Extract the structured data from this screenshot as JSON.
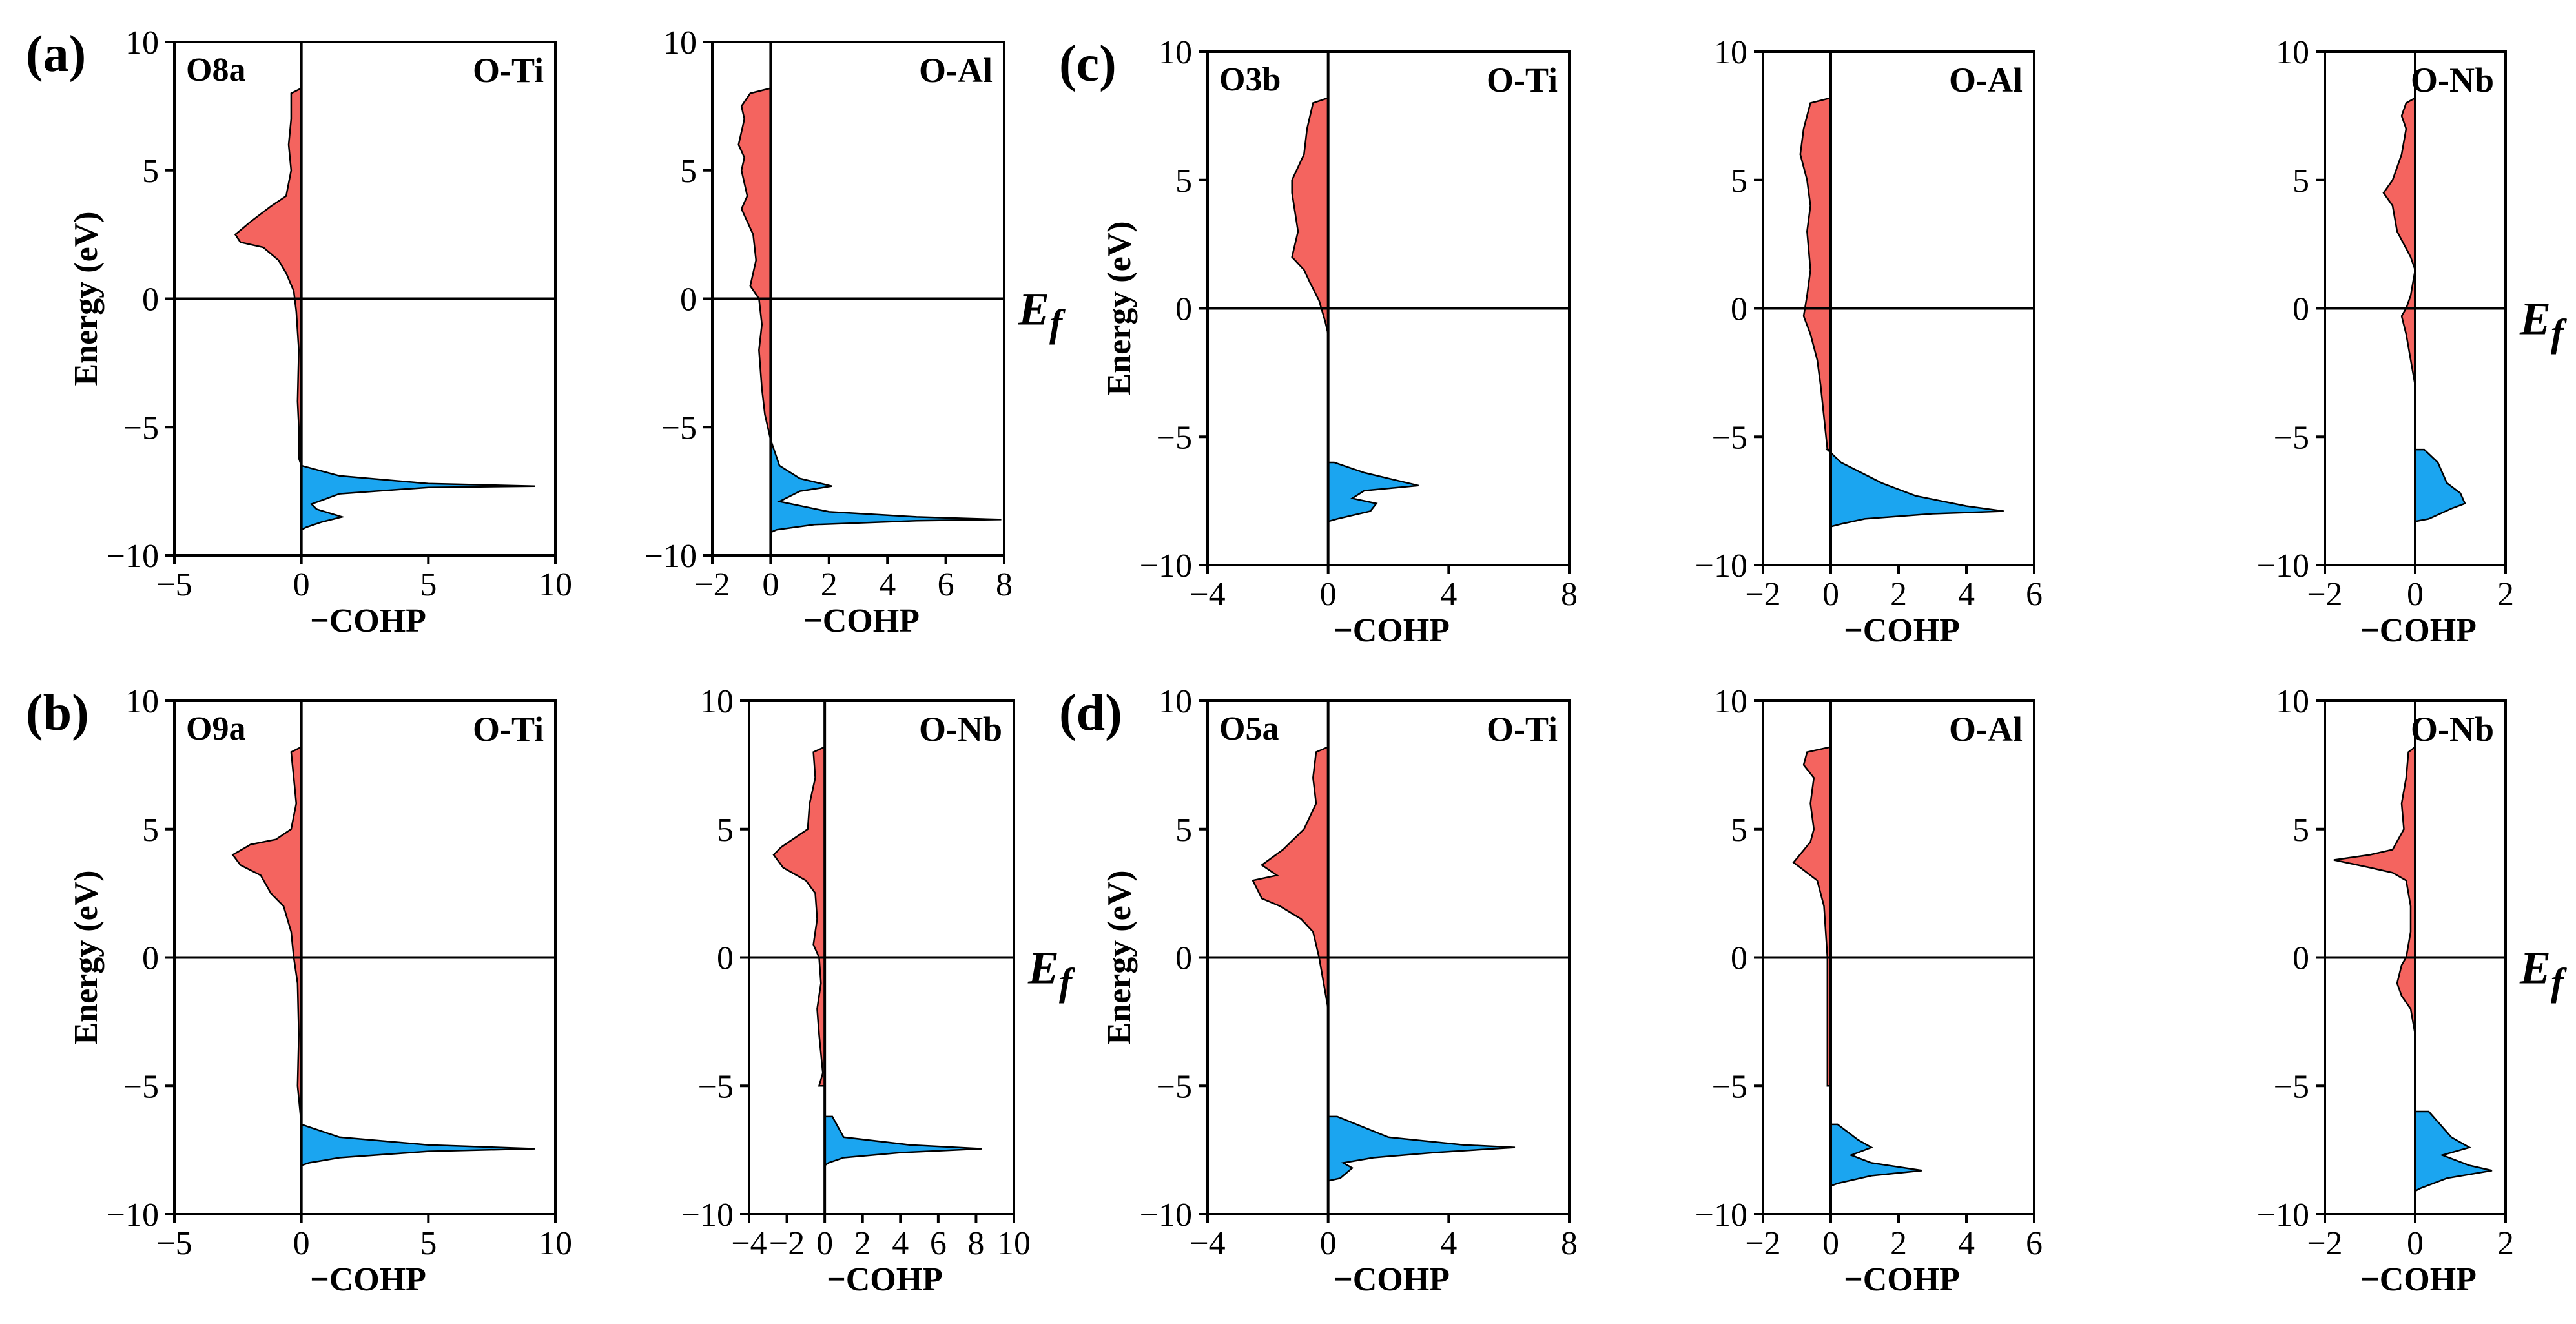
{
  "colors": {
    "antibonding": "#f4645f",
    "bonding": "#1ba5f0",
    "axis": "#000000"
  },
  "chart_data": [
    {
      "panel": "(a)",
      "site": "O8a",
      "bond": "O-Ti",
      "type": "area",
      "xlabel": "−COHP",
      "ylabel": "Energy (eV)",
      "xlim": [
        -5,
        10
      ],
      "ylim": [
        -10,
        10
      ],
      "xticks": [
        -5,
        0,
        5,
        10
      ],
      "xtick_labels": [
        "−5",
        "0",
        "5",
        "10"
      ],
      "yticks": [
        -10,
        -5,
        0,
        5,
        10
      ],
      "ytick_labels": [
        "−10",
        "−5",
        "0",
        "5",
        "10"
      ],
      "fermi_label": "",
      "curve": [
        [
          0,
          8.2
        ],
        [
          -0.4,
          8
        ],
        [
          -0.4,
          7
        ],
        [
          -0.5,
          6
        ],
        [
          -0.4,
          5
        ],
        [
          -0.6,
          4
        ],
        [
          -1.2,
          3.6
        ],
        [
          -2,
          3
        ],
        [
          -2.6,
          2.5
        ],
        [
          -2.4,
          2.2
        ],
        [
          -1.5,
          2
        ],
        [
          -0.9,
          1.5
        ],
        [
          -0.6,
          1
        ],
        [
          -0.3,
          0.3
        ],
        [
          -0.2,
          -0.5
        ],
        [
          -0.1,
          -2
        ],
        [
          -0.15,
          -4
        ],
        [
          -0.1,
          -5
        ],
        [
          -0.1,
          -6.2
        ],
        [
          0,
          -6.5
        ],
        [
          1.5,
          -6.9
        ],
        [
          5,
          -7.2
        ],
        [
          9.2,
          -7.3
        ],
        [
          5,
          -7.35
        ],
        [
          1.5,
          -7.6
        ],
        [
          0.4,
          -8
        ],
        [
          0.6,
          -8.2
        ],
        [
          1.6,
          -8.5
        ],
        [
          0.8,
          -8.7
        ],
        [
          0.2,
          -8.9
        ],
        [
          0,
          -9
        ]
      ]
    },
    {
      "panel": "",
      "site": "",
      "bond": "O-Al",
      "type": "area",
      "xlabel": "−COHP",
      "ylabel": "",
      "xlim": [
        -2,
        8
      ],
      "ylim": [
        -10,
        10
      ],
      "xticks": [
        -2,
        0,
        2,
        4,
        6,
        8
      ],
      "xtick_labels": [
        "−2",
        "0",
        "2",
        "4",
        "6",
        "8"
      ],
      "yticks": [
        -10,
        -5,
        0,
        5,
        10
      ],
      "ytick_labels": [
        "−10",
        "−5",
        "0",
        "5",
        "10"
      ],
      "fermi_label": "Ef",
      "curve": [
        [
          0,
          8.2
        ],
        [
          -0.7,
          8
        ],
        [
          -1,
          7.5
        ],
        [
          -0.9,
          7
        ],
        [
          -1.1,
          6
        ],
        [
          -0.9,
          5.5
        ],
        [
          -1,
          5
        ],
        [
          -0.8,
          4
        ],
        [
          -1,
          3.5
        ],
        [
          -0.6,
          2.5
        ],
        [
          -0.5,
          1.5
        ],
        [
          -0.7,
          0.5
        ],
        [
          -0.4,
          0
        ],
        [
          -0.3,
          -1
        ],
        [
          -0.4,
          -2
        ],
        [
          -0.3,
          -3.5
        ],
        [
          -0.2,
          -4.5
        ],
        [
          0,
          -5.5
        ],
        [
          0.3,
          -6.5
        ],
        [
          1,
          -7
        ],
        [
          2.1,
          -7.3
        ],
        [
          1,
          -7.5
        ],
        [
          0.3,
          -7.9
        ],
        [
          2,
          -8.3
        ],
        [
          5,
          -8.5
        ],
        [
          7.9,
          -8.6
        ],
        [
          5,
          -8.65
        ],
        [
          1.5,
          -8.8
        ],
        [
          0.2,
          -9
        ],
        [
          0,
          -9.1
        ]
      ]
    },
    {
      "panel": "(b)",
      "site": "O9a",
      "bond": "O-Ti",
      "type": "area",
      "xlabel": "−COHP",
      "ylabel": "Energy (eV)",
      "xlim": [
        -5,
        10
      ],
      "ylim": [
        -10,
        10
      ],
      "xticks": [
        -5,
        0,
        5,
        10
      ],
      "xtick_labels": [
        "−5",
        "0",
        "5",
        "10"
      ],
      "yticks": [
        -10,
        -5,
        0,
        5,
        10
      ],
      "ytick_labels": [
        "−10",
        "−5",
        "0",
        "5",
        "10"
      ],
      "fermi_label": "",
      "curve": [
        [
          0,
          8.2
        ],
        [
          -0.4,
          8
        ],
        [
          -0.3,
          7
        ],
        [
          -0.2,
          6
        ],
        [
          -0.4,
          5
        ],
        [
          -1,
          4.6
        ],
        [
          -2,
          4.4
        ],
        [
          -2.7,
          4
        ],
        [
          -2.4,
          3.6
        ],
        [
          -1.6,
          3.2
        ],
        [
          -1.2,
          2.5
        ],
        [
          -0.7,
          2
        ],
        [
          -0.4,
          1
        ],
        [
          -0.3,
          0
        ],
        [
          -0.15,
          -1
        ],
        [
          -0.1,
          -3
        ],
        [
          -0.15,
          -5
        ],
        [
          0,
          -6.5
        ],
        [
          1.5,
          -7
        ],
        [
          5,
          -7.3
        ],
        [
          9.2,
          -7.45
        ],
        [
          5,
          -7.55
        ],
        [
          1.5,
          -7.8
        ],
        [
          0.3,
          -8
        ],
        [
          0,
          -8.1
        ]
      ]
    },
    {
      "panel": "",
      "site": "",
      "bond": "O-Nb",
      "type": "area",
      "xlabel": "−COHP",
      "ylabel": "",
      "xlim": [
        -4,
        10
      ],
      "ylim": [
        -10,
        10
      ],
      "xticks": [
        -4,
        -2,
        0,
        2,
        4,
        6,
        8,
        10
      ],
      "xtick_labels": [
        "−4",
        "−2",
        "0",
        "2",
        "4",
        "6",
        "8",
        "10"
      ],
      "yticks": [
        -10,
        -5,
        0,
        5,
        10
      ],
      "ytick_labels": [
        "−10",
        "−5",
        "0",
        "5",
        "10"
      ],
      "fermi_label": "Ef",
      "curve": [
        [
          0,
          8.2
        ],
        [
          -0.6,
          8
        ],
        [
          -0.5,
          7
        ],
        [
          -0.8,
          6
        ],
        [
          -0.9,
          5
        ],
        [
          -2.3,
          4.3
        ],
        [
          -2.7,
          4
        ],
        [
          -2.2,
          3.5
        ],
        [
          -1,
          3
        ],
        [
          -0.5,
          2.5
        ],
        [
          -0.4,
          1.5
        ],
        [
          -0.6,
          0.5
        ],
        [
          -0.3,
          0
        ],
        [
          -0.2,
          -1
        ],
        [
          -0.4,
          -2
        ],
        [
          -0.3,
          -3
        ],
        [
          -0.1,
          -4.5
        ],
        [
          -0.3,
          -5
        ],
        [
          0.4,
          -6.2
        ],
        [
          1,
          -7
        ],
        [
          4.5,
          -7.3
        ],
        [
          8.3,
          -7.45
        ],
        [
          4,
          -7.6
        ],
        [
          1,
          -7.8
        ],
        [
          0.2,
          -8
        ],
        [
          0,
          -8.1
        ]
      ]
    },
    {
      "panel": "(c)",
      "site": "O3b",
      "bond": "O-Ti",
      "type": "area",
      "xlabel": "−COHP",
      "ylabel": "Energy (eV)",
      "xlim": [
        -4,
        8
      ],
      "ylim": [
        -10,
        10
      ],
      "xticks": [
        -4,
        0,
        4,
        8
      ],
      "xtick_labels": [
        "−4",
        "0",
        "4",
        "8"
      ],
      "yticks": [
        -10,
        -5,
        0,
        5,
        10
      ],
      "ytick_labels": [
        "−10",
        "−5",
        "0",
        "5",
        "10"
      ],
      "fermi_label": "",
      "curve": [
        [
          0,
          8.2
        ],
        [
          -0.5,
          8
        ],
        [
          -0.7,
          7
        ],
        [
          -0.8,
          6
        ],
        [
          -1.2,
          5
        ],
        [
          -1.2,
          4.5
        ],
        [
          -1,
          3
        ],
        [
          -1.2,
          2
        ],
        [
          -0.8,
          1.5
        ],
        [
          -0.6,
          1
        ],
        [
          -0.3,
          0.3
        ],
        [
          -0.1,
          -0.5
        ],
        [
          0,
          -1
        ],
        [
          0.1,
          -4
        ],
        [
          0.1,
          -4.5
        ],
        [
          0,
          -5
        ],
        [
          0.2,
          -6
        ],
        [
          1.2,
          -6.4
        ],
        [
          3,
          -6.9
        ],
        [
          1.2,
          -7.1
        ],
        [
          0.8,
          -7.4
        ],
        [
          1.6,
          -7.6
        ],
        [
          1.4,
          -7.9
        ],
        [
          0.3,
          -8.2
        ],
        [
          0,
          -8.3
        ]
      ]
    },
    {
      "panel": "",
      "site": "",
      "bond": "O-Al",
      "type": "area",
      "xlabel": "−COHP",
      "ylabel": "",
      "xlim": [
        -2,
        6
      ],
      "ylim": [
        -10,
        10
      ],
      "xticks": [
        -2,
        0,
        2,
        4,
        6
      ],
      "xtick_labels": [
        "−2",
        "0",
        "2",
        "4",
        "6"
      ],
      "yticks": [
        -10,
        -5,
        0,
        5,
        10
      ],
      "ytick_labels": [
        "−10",
        "−5",
        "0",
        "5",
        "10"
      ],
      "fermi_label": "",
      "curve": [
        [
          0,
          8.2
        ],
        [
          -0.6,
          8
        ],
        [
          -0.8,
          7
        ],
        [
          -0.9,
          6
        ],
        [
          -0.7,
          5
        ],
        [
          -0.6,
          4
        ],
        [
          -0.7,
          3
        ],
        [
          -0.6,
          1.5
        ],
        [
          -0.7,
          0.5
        ],
        [
          -0.8,
          -0.3
        ],
        [
          -0.6,
          -1
        ],
        [
          -0.4,
          -2
        ],
        [
          -0.3,
          -3
        ],
        [
          -0.1,
          -5.5
        ],
        [
          0.3,
          -6
        ],
        [
          1.5,
          -6.8
        ],
        [
          2.5,
          -7.3
        ],
        [
          4,
          -7.7
        ],
        [
          5.1,
          -7.9
        ],
        [
          3,
          -8
        ],
        [
          1,
          -8.2
        ],
        [
          0.3,
          -8.4
        ],
        [
          0,
          -8.5
        ]
      ]
    },
    {
      "panel": "",
      "site": "",
      "bond": "O-Nb",
      "type": "area",
      "xlabel": "−COHP",
      "ylabel": "",
      "xlim": [
        -2,
        2
      ],
      "ylim": [
        -10,
        10
      ],
      "xticks": [
        -2,
        0,
        2
      ],
      "xtick_labels": [
        "−2",
        "0",
        "2"
      ],
      "yticks": [
        -10,
        -5,
        0,
        5,
        10
      ],
      "ytick_labels": [
        "−10",
        "−5",
        "0",
        "5",
        "10"
      ],
      "fermi_label": "Ef",
      "curve": [
        [
          0,
          8.2
        ],
        [
          -0.2,
          8
        ],
        [
          -0.3,
          7.5
        ],
        [
          -0.2,
          7
        ],
        [
          -0.3,
          6
        ],
        [
          -0.4,
          5.5
        ],
        [
          -0.5,
          5
        ],
        [
          -0.7,
          4.5
        ],
        [
          -0.5,
          4
        ],
        [
          -0.4,
          3
        ],
        [
          -0.1,
          2
        ],
        [
          0,
          1.5
        ],
        [
          -0.1,
          0.5
        ],
        [
          -0.2,
          0
        ],
        [
          -0.3,
          -0.3
        ],
        [
          -0.2,
          -1
        ],
        [
          -0.1,
          -2
        ],
        [
          0,
          -3
        ],
        [
          0.1,
          -4
        ],
        [
          0.2,
          -5.5
        ],
        [
          0.5,
          -6
        ],
        [
          0.7,
          -6.8
        ],
        [
          1,
          -7.2
        ],
        [
          1.1,
          -7.6
        ],
        [
          0.8,
          -7.8
        ],
        [
          0.3,
          -8.2
        ],
        [
          0,
          -8.3
        ]
      ]
    },
    {
      "panel": "(d)",
      "site": "O5a",
      "bond": "O-Ti",
      "type": "area",
      "xlabel": "−COHP",
      "ylabel": "Energy (eV)",
      "xlim": [
        -4,
        8
      ],
      "ylim": [
        -10,
        10
      ],
      "xticks": [
        -4,
        0,
        4,
        8
      ],
      "xtick_labels": [
        "−4",
        "0",
        "4",
        "8"
      ],
      "yticks": [
        -10,
        -5,
        0,
        5,
        10
      ],
      "ytick_labels": [
        "−10",
        "−5",
        "0",
        "5",
        "10"
      ],
      "fermi_label": "",
      "curve": [
        [
          0,
          8.2
        ],
        [
          -0.4,
          8
        ],
        [
          -0.5,
          7
        ],
        [
          -0.4,
          6
        ],
        [
          -0.8,
          5
        ],
        [
          -1.5,
          4.2
        ],
        [
          -2.2,
          3.6
        ],
        [
          -1.7,
          3.2
        ],
        [
          -2.5,
          3
        ],
        [
          -2.2,
          2.3
        ],
        [
          -1.6,
          2
        ],
        [
          -0.9,
          1.5
        ],
        [
          -0.5,
          1
        ],
        [
          -0.3,
          0
        ],
        [
          0,
          -2
        ],
        [
          0,
          -5
        ],
        [
          0.3,
          -6.2
        ],
        [
          2,
          -7
        ],
        [
          4.5,
          -7.3
        ],
        [
          6.2,
          -7.4
        ],
        [
          3.5,
          -7.6
        ],
        [
          1.5,
          -7.8
        ],
        [
          0.5,
          -8
        ],
        [
          0.8,
          -8.2
        ],
        [
          0.4,
          -8.6
        ],
        [
          0,
          -8.7
        ]
      ]
    },
    {
      "panel": "",
      "site": "",
      "bond": "O-Al",
      "type": "area",
      "xlabel": "−COHP",
      "ylabel": "",
      "xlim": [
        -2,
        6
      ],
      "ylim": [
        -10,
        10
      ],
      "xticks": [
        -2,
        0,
        2,
        4,
        6
      ],
      "xtick_labels": [
        "−2",
        "0",
        "2",
        "4",
        "6"
      ],
      "yticks": [
        -10,
        -5,
        0,
        5,
        10
      ],
      "ytick_labels": [
        "−10",
        "−5",
        "0",
        "5",
        "10"
      ],
      "fermi_label": "",
      "curve": [
        [
          0,
          8.2
        ],
        [
          -0.7,
          8
        ],
        [
          -0.8,
          7.5
        ],
        [
          -0.5,
          7
        ],
        [
          -0.6,
          6
        ],
        [
          -0.5,
          5
        ],
        [
          -0.6,
          4.5
        ],
        [
          -1.1,
          3.7
        ],
        [
          -0.8,
          3.4
        ],
        [
          -0.4,
          3
        ],
        [
          -0.2,
          2
        ],
        [
          -0.1,
          0
        ],
        [
          -0.1,
          -2
        ],
        [
          -0.1,
          -5
        ],
        [
          0.2,
          -6.5
        ],
        [
          0.8,
          -7.1
        ],
        [
          1.2,
          -7.4
        ],
        [
          0.6,
          -7.7
        ],
        [
          1.2,
          -8
        ],
        [
          2.7,
          -8.3
        ],
        [
          1.2,
          -8.5
        ],
        [
          0.2,
          -8.8
        ],
        [
          0,
          -8.9
        ]
      ]
    },
    {
      "panel": "",
      "site": "",
      "bond": "O-Nb",
      "type": "area",
      "xlabel": "−COHP",
      "ylabel": "",
      "xlim": [
        -2,
        2
      ],
      "ylim": [
        -10,
        10
      ],
      "xticks": [
        -2,
        0,
        2
      ],
      "xtick_labels": [
        "−2",
        "0",
        "2"
      ],
      "yticks": [
        -10,
        -5,
        0,
        5,
        10
      ],
      "ytick_labels": [
        "−10",
        "−5",
        "0",
        "5",
        "10"
      ],
      "fermi_label": "Ef",
      "curve": [
        [
          0,
          8.2
        ],
        [
          -0.15,
          8
        ],
        [
          -0.2,
          7
        ],
        [
          -0.3,
          6
        ],
        [
          -0.25,
          5
        ],
        [
          -0.5,
          4.2
        ],
        [
          -1,
          4
        ],
        [
          -1.8,
          3.8
        ],
        [
          -1,
          3.5
        ],
        [
          -0.5,
          3.3
        ],
        [
          -0.2,
          3
        ],
        [
          -0.1,
          2
        ],
        [
          -0.1,
          1
        ],
        [
          -0.2,
          0
        ],
        [
          -0.3,
          -0.3
        ],
        [
          -0.4,
          -1
        ],
        [
          -0.3,
          -1.5
        ],
        [
          -0.1,
          -2
        ],
        [
          0,
          -3
        ],
        [
          0.1,
          -4.5
        ],
        [
          0.3,
          -6
        ],
        [
          0.8,
          -7
        ],
        [
          1.2,
          -7.4
        ],
        [
          0.6,
          -7.7
        ],
        [
          1.2,
          -8.1
        ],
        [
          1.7,
          -8.3
        ],
        [
          0.7,
          -8.6
        ],
        [
          0.1,
          -9
        ],
        [
          0,
          -9.1
        ]
      ]
    }
  ]
}
